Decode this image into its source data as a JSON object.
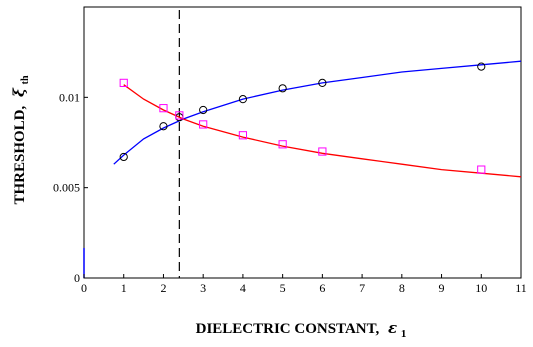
{
  "chart_data": {
    "type": "scatter",
    "xlabel": "DIELECTRIC CONSTANT,",
    "xlabel_symbol": "ε",
    "xlabel_subscript": "1",
    "ylabel": "THRESHOLD,",
    "ylabel_symbol": "ξ",
    "ylabel_subscript": "th",
    "xlim": [
      0,
      11
    ],
    "ylim": [
      0,
      0.015
    ],
    "x_ticks": [
      0,
      1,
      2,
      3,
      4,
      5,
      6,
      7,
      8,
      9,
      10,
      11
    ],
    "y_ticks": [
      0,
      0.005,
      0.01
    ],
    "y_tick_labels": [
      "0",
      "0.005",
      "0.01"
    ],
    "grid": false,
    "vline": {
      "x": 2.4,
      "style": "dashed",
      "color": "#000000"
    },
    "series": [
      {
        "marker": "circle",
        "marker_color": "#000000",
        "line_color": "#0000ff",
        "points": [
          [
            1,
            0.0067
          ],
          [
            2,
            0.0084
          ],
          [
            2.4,
            0.0089
          ],
          [
            3,
            0.0093
          ],
          [
            4,
            0.0099
          ],
          [
            5,
            0.0105
          ],
          [
            6,
            0.0108
          ],
          [
            10,
            0.0117
          ]
        ],
        "fit_curve": [
          [
            0.75,
            0.0063
          ],
          [
            1,
            0.0068
          ],
          [
            1.5,
            0.0077
          ],
          [
            2,
            0.0083
          ],
          [
            2.5,
            0.0088
          ],
          [
            3,
            0.0092
          ],
          [
            4,
            0.0099
          ],
          [
            5,
            0.0104
          ],
          [
            6,
            0.0108
          ],
          [
            7,
            0.0111
          ],
          [
            8,
            0.0114
          ],
          [
            9,
            0.0116
          ],
          [
            10,
            0.0118
          ],
          [
            11,
            0.012
          ]
        ]
      },
      {
        "marker": "square",
        "marker_color": "#ff00ff",
        "line_color": "#ff0000",
        "points": [
          [
            1,
            0.0108
          ],
          [
            2,
            0.0094
          ],
          [
            2.4,
            0.009
          ],
          [
            3,
            0.0085
          ],
          [
            4,
            0.0079
          ],
          [
            5,
            0.0074
          ],
          [
            6,
            0.007
          ],
          [
            10,
            0.006
          ]
        ],
        "fit_curve": [
          [
            1,
            0.0107
          ],
          [
            1.5,
            0.0099
          ],
          [
            2,
            0.0093
          ],
          [
            2.5,
            0.0088
          ],
          [
            3,
            0.0084
          ],
          [
            4,
            0.0078
          ],
          [
            5,
            0.0073
          ],
          [
            6,
            0.0069
          ],
          [
            7,
            0.0066
          ],
          [
            8,
            0.0063
          ],
          [
            9,
            0.006
          ],
          [
            10,
            0.0058
          ],
          [
            11,
            0.0056
          ]
        ]
      }
    ]
  }
}
